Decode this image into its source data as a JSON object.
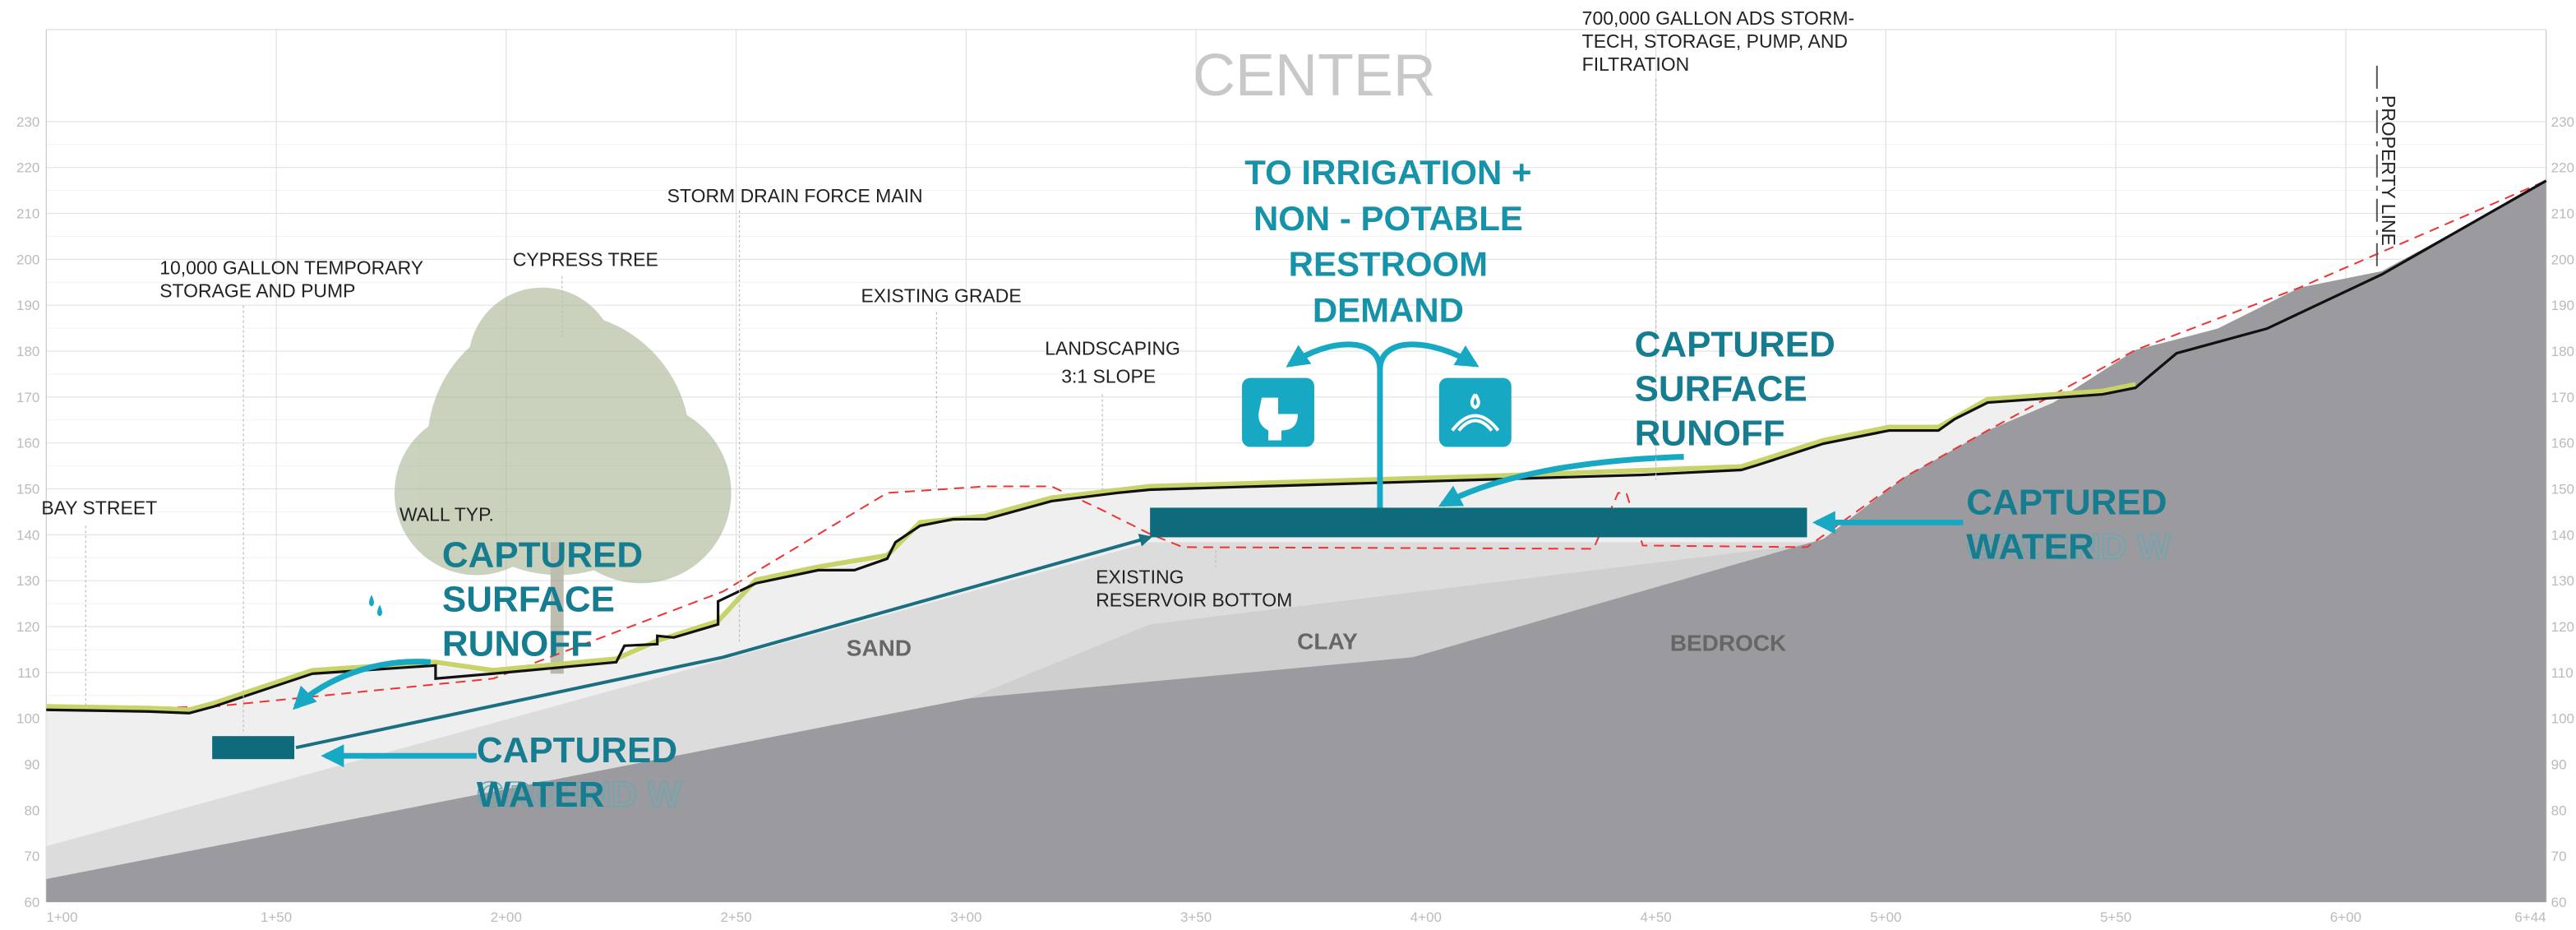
{
  "header": {
    "title": "CENTER"
  },
  "axis": {
    "elevations": [
      "230",
      "220",
      "210",
      "200",
      "190",
      "180",
      "170",
      "160",
      "150",
      "140",
      "130",
      "120",
      "110",
      "100",
      "90",
      "80",
      "70",
      "60"
    ],
    "stations": [
      "1+00",
      "1+50",
      "2+00",
      "2+50",
      "3+00",
      "3+50",
      "4+00",
      "4+50",
      "5+00",
      "5+50",
      "6+00",
      "6+44"
    ]
  },
  "labels": {
    "storage_700k": [
      "700,000 GALLON ADS STORM-",
      "TECH, STORAGE, PUMP, AND",
      "FILTRATION"
    ],
    "property_line": "PROPERTY LINE",
    "storm_drain": "STORM DRAIN FORCE MAIN",
    "storage_10k": [
      "10,000 GALLON TEMPORARY",
      "STORAGE AND PUMP"
    ],
    "cypress": "CYPRESS TREE",
    "existing_grade": "EXISTING GRADE",
    "landscaping": [
      "LANDSCAPING",
      "3:1 SLOPE"
    ],
    "bay_street": "BAY STREET",
    "wall": "WALL TYP.",
    "reservoir": [
      "EXISTING",
      "RESERVOIR BOTTOM"
    ]
  },
  "soils": [
    "SAND",
    "CLAY",
    "BEDROCK"
  ],
  "callouts": {
    "demand": [
      "TO IRRIGATION +",
      "NON - POTABLE",
      "RESTROOM",
      "DEMAND"
    ],
    "runoff_left": [
      "CAPTURED",
      "SURFACE",
      "RUNOFF"
    ],
    "runoff_right": [
      "CAPTURED",
      "SURFACE",
      "RUNOFF"
    ],
    "water_left": {
      "lines": [
        "CAPTURED",
        "WATER"
      ],
      "ghost": "GROUND W"
    },
    "water_right": {
      "lines": [
        "CAPTURED",
        "WATER"
      ],
      "ghost": "GROUND W"
    }
  }
}
